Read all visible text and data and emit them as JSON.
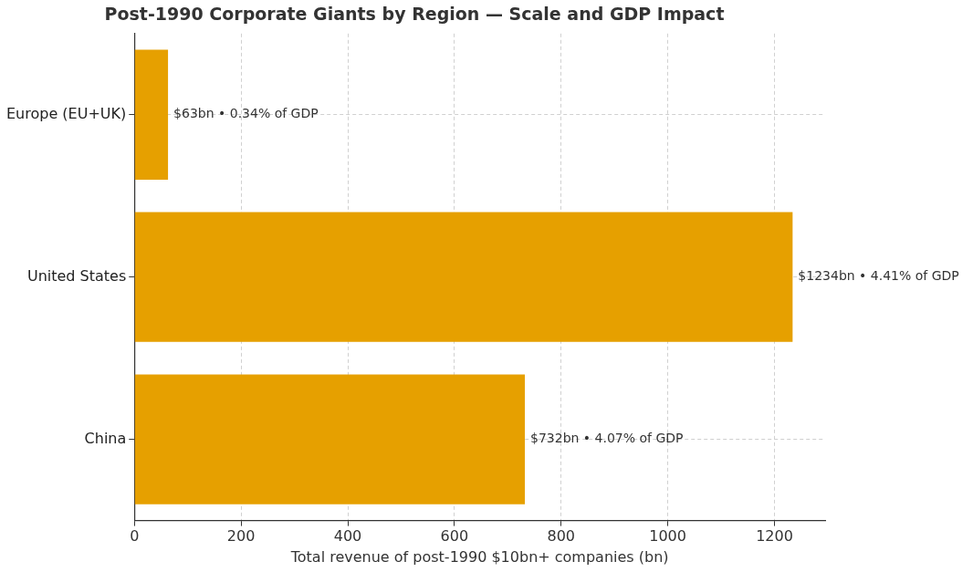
{
  "chart_data": {
    "type": "bar",
    "orientation": "horizontal",
    "title": "Post-1990 Corporate Giants by Region — Scale and GDP Impact",
    "xlabel": "Total revenue of post-1990 $10bn+ companies (bn)",
    "categories": [
      "Europe (EU+UK)",
      "United States",
      "China"
    ],
    "values": [
      63,
      1234,
      732
    ],
    "annotations": [
      {
        "text": "$63bn • 0.34% of GDP",
        "x": 63,
        "y": "Europe (EU+UK)"
      },
      {
        "text": "$1234bn • 4.41% of GDP",
        "x": 1234,
        "y": "United States"
      },
      {
        "text": "$732bn • 4.07% of GDP",
        "x": 732,
        "y": "China"
      }
    ],
    "color": "#e6a000",
    "xlim": [
      0,
      1295
    ],
    "xticks": [
      0,
      200,
      400,
      600,
      800,
      1000,
      1200
    ],
    "grid": true,
    "legend": false
  }
}
